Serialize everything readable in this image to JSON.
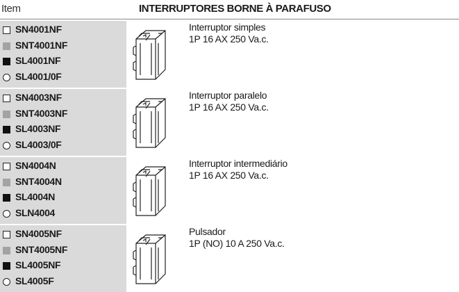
{
  "header": {
    "item": "Item",
    "title": "INTERRUPTORES BORNE À PARAFUSO"
  },
  "rows": [
    {
      "items": [
        "SN4001NF",
        "SNT4001NF",
        "SL4001NF",
        "SL4001/0F"
      ],
      "name": "Interruptor simples",
      "spec": "1P 16 AX 250 Va.c."
    },
    {
      "items": [
        "SN4003NF",
        "SNT4003NF",
        "SL4003NF",
        "SL4003/0F"
      ],
      "name": "Interruptor paralelo",
      "spec": "1P 16 AX 250 Va.c."
    },
    {
      "items": [
        "SN4004N",
        "SNT4004N",
        "SL4004N",
        "SLN4004"
      ],
      "name": "Interruptor intermediário",
      "spec": "1P 16 AX 250 Va.c."
    },
    {
      "items": [
        "SN4005NF",
        "SNT4005NF",
        "SL4005NF",
        "SL4005F"
      ],
      "name": "Pulsador",
      "spec": "1P (NO) 10 A 250 Va.c."
    }
  ]
}
